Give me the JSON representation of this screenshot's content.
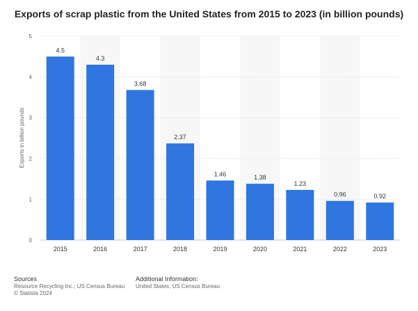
{
  "chart_data": {
    "type": "bar",
    "title": "Exports of scrap plastic from the United States from 2015 to 2023 (in billion pounds)",
    "xlabel": "",
    "ylabel": "Exports in billion pounds",
    "categories": [
      "2015",
      "2016",
      "2017",
      "2018",
      "2019",
      "2020",
      "2021",
      "2022",
      "2023"
    ],
    "values": [
      4.5,
      4.3,
      3.68,
      2.37,
      1.46,
      1.38,
      1.23,
      0.96,
      0.92
    ],
    "data_labels": [
      "4.5",
      "4.3",
      "3.68",
      "2.37",
      "1.46",
      "1.38",
      "1.23",
      "0.96",
      "0.92"
    ],
    "ylim": [
      0,
      5
    ],
    "yticks": [
      "0",
      "1",
      "2",
      "3",
      "4",
      "5"
    ],
    "grid": true,
    "bar_color": "#2f76e0"
  },
  "footer": {
    "sources_title": "Sources",
    "sources_line": "Resource Recycling Inc.; US Census Bureau",
    "copyright": "© Statista 2024",
    "info_title": "Additional Information:",
    "info_line": "United States; US Census Bureau"
  }
}
